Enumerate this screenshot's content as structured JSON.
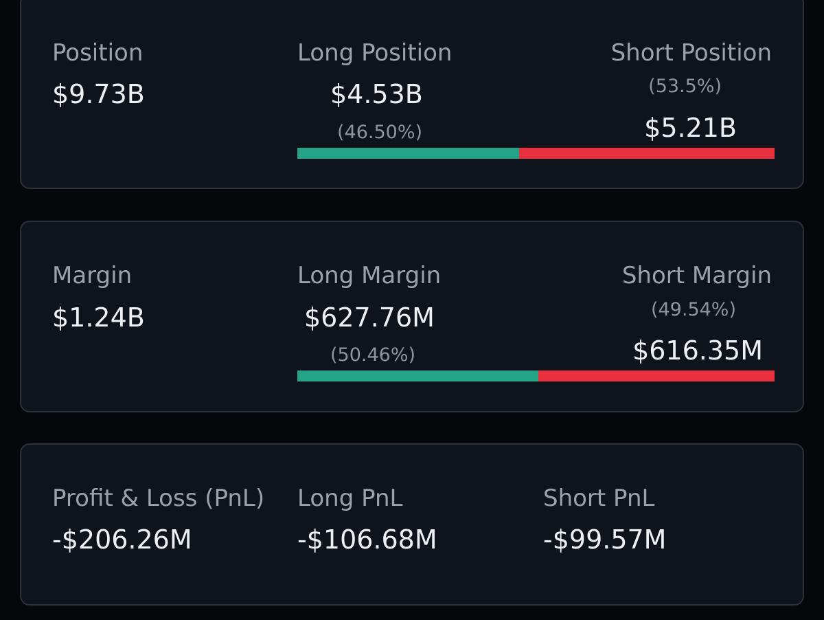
{
  "colors": {
    "long": "#23a487",
    "short": "#e8303f"
  },
  "position": {
    "label": "Position",
    "value": "$9.73B",
    "long_label": "Long Position",
    "long_value": "$4.53B",
    "long_pct": "(46.50%)",
    "short_label": "Short Position",
    "short_pct": "(53.5%)",
    "short_value": "$5.21B",
    "long_share": 0.465
  },
  "margin": {
    "label": "Margin",
    "value": "$1.24B",
    "long_label": "Long Margin",
    "long_value": "$627.76M",
    "long_pct": "(50.46%)",
    "short_label": "Short Margin",
    "short_pct": "(49.54%)",
    "short_value": "$616.35M",
    "long_share": 0.5046
  },
  "pnl": {
    "label": "Profit & Loss (PnL)",
    "value": "-$206.26M",
    "long_label": "Long PnL",
    "long_value": "-$106.68M",
    "short_label": "Short PnL",
    "short_value": "-$99.57M"
  }
}
